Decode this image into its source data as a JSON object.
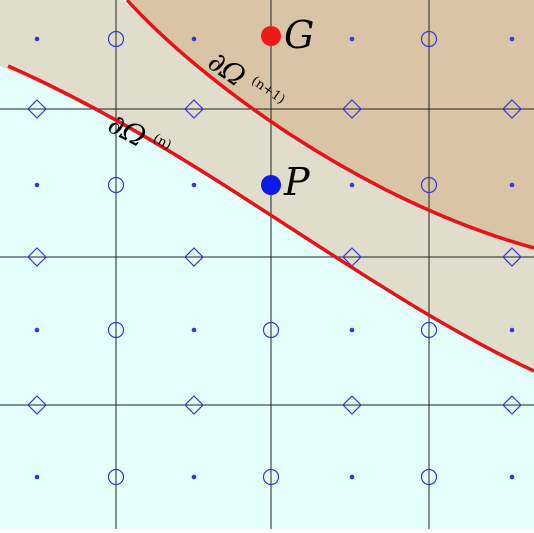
{
  "colors": {
    "outer_region": "#e4fefe",
    "middle_band": "#e0ddcc",
    "inner_region": "#d9c4a6",
    "grid_line": "#222222",
    "boundary_curve": "#e5131a",
    "marker_blue": "#3535e0",
    "point_p": "#0a1be8",
    "point_g": "#f01818"
  },
  "labels": {
    "point_g": "G",
    "point_p": "P",
    "boundary_n_main": "∂Ω",
    "boundary_n_sup": "(n)",
    "boundary_n1_main": "∂Ω",
    "boundary_n1_sup": "(n+1)"
  },
  "marker_legend_icons": [
    "dot-icon",
    "circle-icon",
    "diamond-icon"
  ]
}
